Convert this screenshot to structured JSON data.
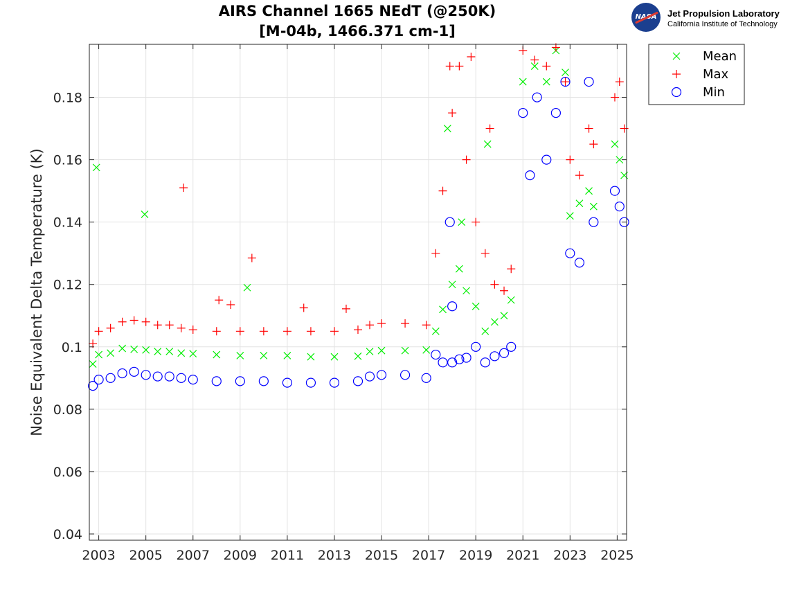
{
  "logo": {
    "nasa_text": "NASA",
    "lab_name": "Jet Propulsion Laboratory",
    "institute": "California Institute of Technology"
  },
  "chart_data": {
    "type": "scatter",
    "title": "AIRS Channel 1665 NEdT (@250K)",
    "subtitle": "[M-04b, 1466.371 cm-1]",
    "xlabel": "",
    "ylabel": "Noise Equivalent Delta Temperature (K)",
    "xlim": [
      2002.6,
      2025.4
    ],
    "ylim": [
      0.038,
      0.197
    ],
    "x_ticks": [
      2003,
      2005,
      2007,
      2009,
      2011,
      2013,
      2015,
      2017,
      2019,
      2021,
      2023,
      2025
    ],
    "x_tick_labels": [
      "2003",
      "2005",
      "2007",
      "2009",
      "2011",
      "2013",
      "2015",
      "2017",
      "2019",
      "2021",
      "2023",
      "2025"
    ],
    "y_ticks": [
      0.04,
      0.06,
      0.08,
      0.1,
      0.12,
      0.14,
      0.16,
      0.18
    ],
    "y_tick_labels": [
      "0.04",
      "0.06",
      "0.08",
      "0.1",
      "0.12",
      "0.14",
      "0.16",
      "0.18"
    ],
    "grid": true,
    "legend_position": "outside-top-right",
    "series": [
      {
        "name": "Mean",
        "marker": "x",
        "color": "#00ee00",
        "x": [
          2002.75,
          2003.0,
          2003.5,
          2004.0,
          2004.5,
          2005.0,
          2005.5,
          2006.0,
          2006.5,
          2007.0,
          2008.0,
          2009.0,
          2010.0,
          2011.0,
          2012.0,
          2013.0,
          2014.0,
          2014.5,
          2015.0,
          2016.0,
          2016.9,
          2017.3,
          2017.6,
          2018.0,
          2018.3,
          2018.6,
          2019.0,
          2019.4,
          2019.8,
          2020.2,
          2020.5,
          2021.0,
          2021.5,
          2022.0,
          2022.4,
          2022.8,
          2023.0,
          2023.4,
          2023.8,
          2024.0,
          2024.9,
          2025.1,
          2025.3,
          2002.9,
          2004.95,
          2009.3,
          2017.8,
          2018.4,
          2019.5
        ],
        "y": [
          0.0945,
          0.0975,
          0.098,
          0.0995,
          0.0992,
          0.099,
          0.0985,
          0.0985,
          0.098,
          0.0978,
          0.0975,
          0.0972,
          0.0972,
          0.0972,
          0.0968,
          0.0968,
          0.097,
          0.0985,
          0.0988,
          0.0988,
          0.099,
          0.105,
          0.112,
          0.12,
          0.125,
          0.118,
          0.113,
          0.105,
          0.108,
          0.11,
          0.115,
          0.185,
          0.19,
          0.185,
          0.195,
          0.188,
          0.142,
          0.146,
          0.15,
          0.145,
          0.165,
          0.16,
          0.155,
          0.1575,
          0.1425,
          0.119,
          0.17,
          0.14,
          0.165
        ]
      },
      {
        "name": "Max",
        "marker": "+",
        "color": "#ff0000",
        "x": [
          2002.75,
          2003.0,
          2003.5,
          2004.0,
          2004.5,
          2005.0,
          2005.5,
          2006.0,
          2006.5,
          2007.0,
          2008.0,
          2009.0,
          2010.0,
          2011.0,
          2012.0,
          2013.0,
          2014.0,
          2014.5,
          2015.0,
          2016.0,
          2016.9,
          2017.3,
          2017.6,
          2018.0,
          2018.3,
          2018.6,
          2019.0,
          2019.4,
          2019.8,
          2020.2,
          2020.5,
          2021.0,
          2021.5,
          2022.0,
          2022.4,
          2022.8,
          2023.0,
          2023.4,
          2023.8,
          2024.0,
          2024.9,
          2025.1,
          2025.3,
          2006.6,
          2008.1,
          2008.6,
          2009.5,
          2011.7,
          2013.5,
          2017.9,
          2018.8,
          2019.6
        ],
        "y": [
          0.101,
          0.105,
          0.106,
          0.108,
          0.1085,
          0.108,
          0.107,
          0.107,
          0.106,
          0.1055,
          0.105,
          0.105,
          0.105,
          0.105,
          0.105,
          0.105,
          0.1055,
          0.107,
          0.1075,
          0.1075,
          0.107,
          0.13,
          0.15,
          0.175,
          0.19,
          0.16,
          0.14,
          0.13,
          0.12,
          0.118,
          0.125,
          0.195,
          0.192,
          0.19,
          0.196,
          0.185,
          0.16,
          0.155,
          0.17,
          0.165,
          0.18,
          0.185,
          0.17,
          0.151,
          0.115,
          0.1135,
          0.1285,
          0.1125,
          0.1122,
          0.19,
          0.193,
          0.17
        ]
      },
      {
        "name": "Min",
        "marker": "o",
        "color": "#0000ff",
        "x": [
          2002.75,
          2003.0,
          2003.5,
          2004.0,
          2004.5,
          2005.0,
          2005.5,
          2006.0,
          2006.5,
          2007.0,
          2008.0,
          2009.0,
          2010.0,
          2011.0,
          2012.0,
          2013.0,
          2014.0,
          2014.5,
          2015.0,
          2016.0,
          2016.9,
          2017.3,
          2017.6,
          2018.0,
          2018.3,
          2018.6,
          2019.0,
          2019.4,
          2019.8,
          2020.2,
          2020.5,
          2021.0,
          2021.3,
          2021.6,
          2022.0,
          2022.4,
          2022.8,
          2023.0,
          2023.4,
          2023.8,
          2024.0,
          2024.9,
          2025.1,
          2025.3,
          2017.9,
          2018.0
        ],
        "y": [
          0.0875,
          0.0895,
          0.09,
          0.0915,
          0.092,
          0.091,
          0.0905,
          0.0905,
          0.09,
          0.0895,
          0.089,
          0.089,
          0.089,
          0.0885,
          0.0885,
          0.0885,
          0.089,
          0.0905,
          0.091,
          0.091,
          0.09,
          0.0975,
          0.095,
          0.095,
          0.096,
          0.0965,
          0.1,
          0.095,
          0.097,
          0.098,
          0.1,
          0.175,
          0.155,
          0.18,
          0.16,
          0.175,
          0.185,
          0.13,
          0.127,
          0.185,
          0.14,
          0.15,
          0.145,
          0.14,
          0.14,
          0.113
        ]
      }
    ]
  }
}
